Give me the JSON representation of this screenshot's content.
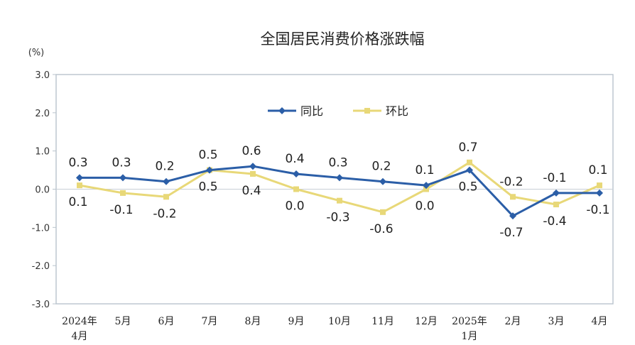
{
  "chart_data": {
    "type": "line",
    "title": "全国居民消费价格涨跌幅",
    "unit_label": "(%)",
    "categories": [
      [
        "2024年",
        "4月"
      ],
      [
        "5月"
      ],
      [
        "6月"
      ],
      [
        "7月"
      ],
      [
        "8月"
      ],
      [
        "9月"
      ],
      [
        "10月"
      ],
      [
        "11月"
      ],
      [
        "12月"
      ],
      [
        "2025年",
        "1月"
      ],
      [
        "2月"
      ],
      [
        "3月"
      ],
      [
        "4月"
      ]
    ],
    "series": [
      {
        "name": "同比",
        "color": "#2b5ea7",
        "marker": "diamond",
        "values": [
          0.3,
          0.3,
          0.2,
          0.5,
          0.6,
          0.4,
          0.3,
          0.2,
          0.1,
          0.5,
          -0.7,
          -0.1,
          -0.1
        ]
      },
      {
        "name": "环比",
        "color": "#e8d878",
        "marker": "square",
        "values": [
          0.1,
          -0.1,
          -0.2,
          0.5,
          0.4,
          0.0,
          -0.3,
          -0.6,
          0.0,
          0.7,
          -0.2,
          -0.4,
          0.1
        ]
      }
    ],
    "data_labels": {
      "同比": [
        "0.3",
        "0.3",
        "0.2",
        "0.5",
        "0.6",
        "0.4",
        "0.3",
        "0.2",
        "0.1",
        "0.5",
        "-0.7",
        "-0.1",
        "-0.1"
      ],
      "环比": [
        "0.1",
        "-0.1",
        "-0.2",
        "0.5",
        "0.4",
        "0.0",
        "-0.3",
        "-0.6",
        "0.0",
        "0.7",
        "-0.2",
        "-0.4",
        "0.1"
      ]
    },
    "y_ticks": [
      "3.0",
      "2.0",
      "1.0",
      "0.0",
      "-1.0",
      "-2.0",
      "-3.0"
    ],
    "ylim": [
      -3.0,
      3.0
    ],
    "grid": false,
    "legend_position": "top-right"
  }
}
